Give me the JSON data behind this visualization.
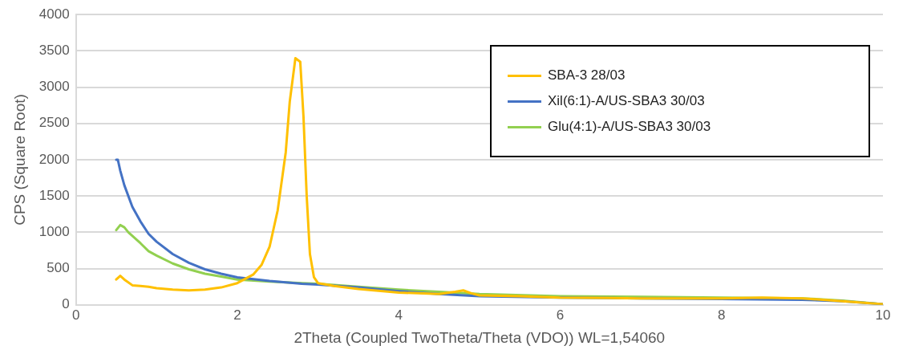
{
  "chart_data": {
    "type": "line",
    "xlabel": "2Theta (Coupled TwoTheta/Theta (VDO)) WL=1,54060",
    "ylabel": "CPS (Square Root)",
    "xlim": [
      0,
      10
    ],
    "xticks": [
      0,
      2,
      4,
      6,
      8,
      10
    ],
    "ylim": [
      0,
      4000
    ],
    "yticks": [
      0,
      500,
      1000,
      1500,
      2000,
      2500,
      3000,
      3500,
      4000
    ],
    "grid": "y",
    "legend": "top right",
    "marker": "none",
    "line_style": "solid",
    "series": [
      {
        "name": "SBA-3 28/03",
        "color": "#ffc000",
        "x": [
          0.5,
          0.55,
          0.6,
          0.7,
          0.8,
          0.9,
          1.0,
          1.2,
          1.4,
          1.6,
          1.8,
          2.0,
          2.2,
          2.3,
          2.4,
          2.5,
          2.6,
          2.65,
          2.72,
          2.78,
          2.82,
          2.86,
          2.9,
          2.95,
          3.0,
          3.2,
          3.5,
          4.0,
          4.5,
          4.7,
          4.8,
          4.9,
          5.0,
          5.5,
          6.0,
          7.0,
          8.0,
          8.5,
          9.0,
          9.5,
          10.0
        ],
        "values": [
          350,
          400,
          350,
          270,
          260,
          250,
          230,
          210,
          200,
          210,
          240,
          300,
          420,
          550,
          800,
          1300,
          2100,
          2800,
          3400,
          3350,
          2600,
          1500,
          700,
          380,
          300,
          260,
          220,
          170,
          150,
          180,
          200,
          160,
          130,
          120,
          100,
          90,
          90,
          100,
          90,
          50,
          10
        ]
      },
      {
        "name": "Xil(6:1)-A/US-SBA3 30/03",
        "color": "#4472c4",
        "x": [
          0.5,
          0.52,
          0.55,
          0.6,
          0.7,
          0.8,
          0.9,
          1.0,
          1.2,
          1.4,
          1.6,
          1.8,
          2.0,
          2.4,
          2.8,
          3.0,
          3.5,
          4.0,
          4.5,
          5.0,
          6.0,
          7.0,
          8.0,
          9.0,
          9.5,
          10.0
        ],
        "values": [
          2000,
          2000,
          1850,
          1650,
          1350,
          1150,
          980,
          870,
          700,
          580,
          490,
          430,
          380,
          330,
          290,
          280,
          240,
          190,
          150,
          120,
          100,
          90,
          80,
          70,
          50,
          10
        ]
      },
      {
        "name": "Glu(4:1)-A/US-SBA3 30/03",
        "color": "#92d050",
        "x": [
          0.5,
          0.55,
          0.6,
          0.65,
          0.7,
          0.8,
          0.9,
          1.0,
          1.2,
          1.4,
          1.6,
          1.8,
          2.0,
          2.4,
          2.8,
          3.0,
          3.5,
          4.0,
          4.5,
          5.0,
          6.0,
          7.0,
          8.0,
          9.0,
          9.5,
          10.0
        ],
        "values": [
          1030,
          1100,
          1070,
          1000,
          950,
          850,
          740,
          680,
          570,
          490,
          430,
          390,
          350,
          320,
          300,
          290,
          250,
          210,
          180,
          150,
          120,
          110,
          100,
          90,
          60,
          10
        ]
      }
    ]
  }
}
